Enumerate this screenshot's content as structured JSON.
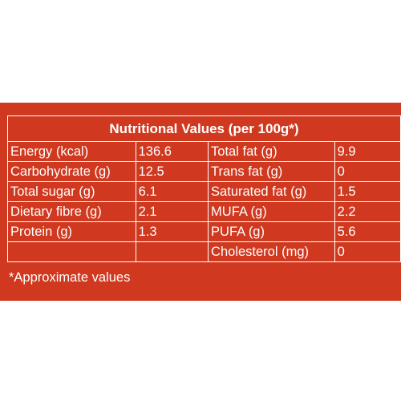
{
  "title": "Nutritional Values (per 100g*)",
  "left_rows": [
    {
      "label": "Energy (kcal)",
      "value": "136.6",
      "indent": 0
    },
    {
      "label": "Carbohydrate (g)",
      "value": "12.5",
      "indent": 0
    },
    {
      "label": "Total sugar (g)",
      "value": "6.1",
      "indent": 1
    },
    {
      "label": "Dietary fibre (g)",
      "value": "2.1",
      "indent": 1
    },
    {
      "label": "Protein (g)",
      "value": "1.3",
      "indent": 0
    },
    {
      "label": "",
      "value": "",
      "indent": 0
    }
  ],
  "right_rows": [
    {
      "label": "Total fat (g)",
      "value": "9.9",
      "indent": 0
    },
    {
      "label": "Trans fat (g)",
      "value": "0",
      "indent": 2
    },
    {
      "label": "Saturated fat (g)",
      "value": "1.5",
      "indent": 2
    },
    {
      "label": "MUFA (g)",
      "value": "2.2",
      "indent": 2
    },
    {
      "label": "PUFA (g)",
      "value": "5.6",
      "indent": 2
    },
    {
      "label": "Cholesterol (mg)",
      "value": "0",
      "indent": 2
    }
  ],
  "footnote": "*Approximate values",
  "colors": {
    "background": "#d0391f",
    "text": "#ffffff"
  }
}
